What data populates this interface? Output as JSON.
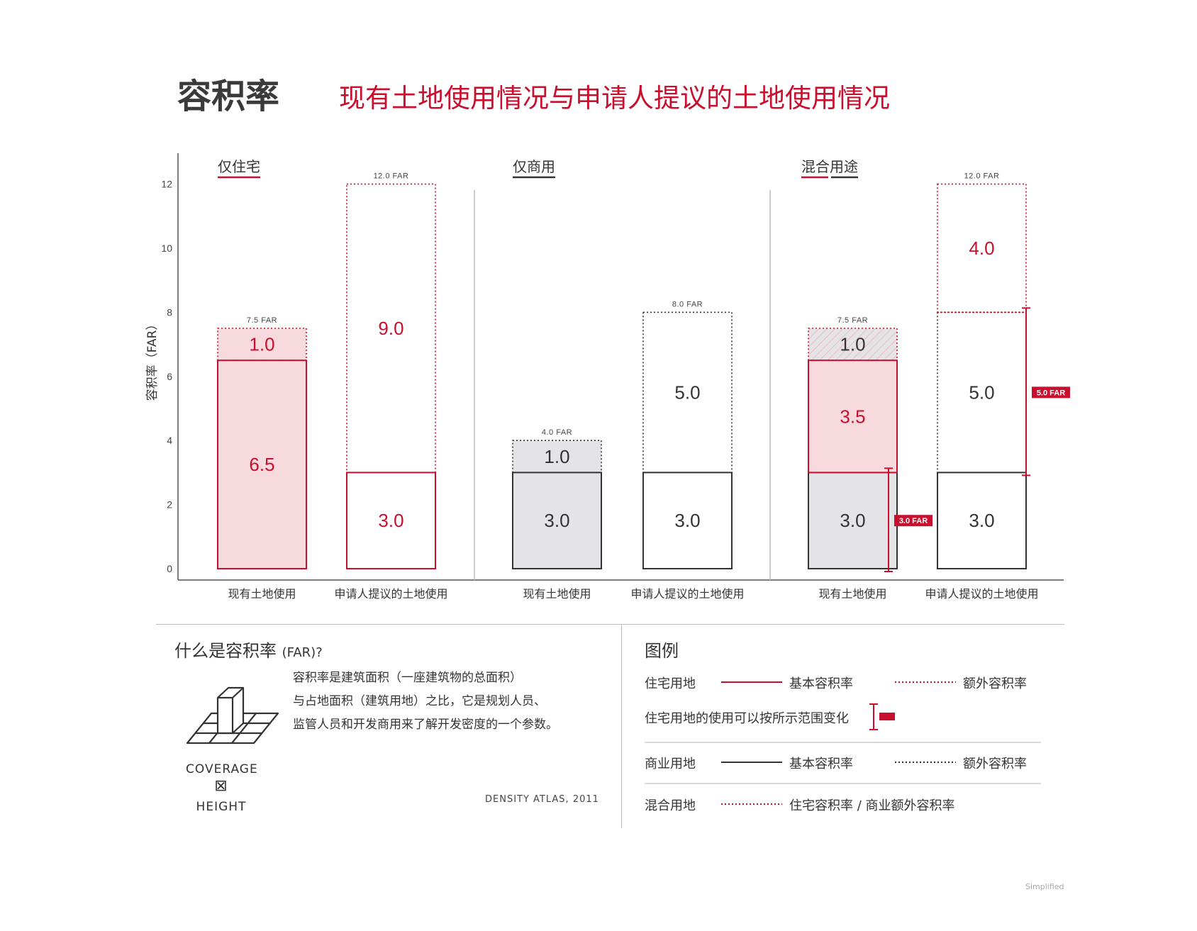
{
  "header": {
    "title": "容积率",
    "subtitle": "现有土地使用情况与申请人提议的土地使用情况"
  },
  "colors": {
    "red": "#c8102e",
    "red_fill": "#f6dadd",
    "gray_fill": "#e4e4e6",
    "dark": "#333333"
  },
  "chart_data": {
    "type": "bar",
    "ylabel": "容积率（FAR）",
    "ylim": [
      0,
      13
    ],
    "yticks": [
      "0",
      "2",
      "4",
      "6",
      "8",
      "10",
      "12"
    ],
    "groups": [
      {
        "name": "仅住宅",
        "bars": [
          {
            "label": "现有土地使用",
            "total_label": "7.5 FAR",
            "segments": [
              {
                "value": 6.5,
                "text": "6.5",
                "style": "residential-base"
              },
              {
                "value": 1.0,
                "text": "1.0",
                "style": "residential-bonus"
              }
            ]
          },
          {
            "label": "申请人提议的土地使用",
            "total_label": "12.0 FAR",
            "segments": [
              {
                "value": 3.0,
                "text": "3.0",
                "style": "residential-base-empty"
              },
              {
                "value": 9.0,
                "text": "9.0",
                "style": "residential-bonus-empty"
              }
            ]
          }
        ]
      },
      {
        "name": "仅商用",
        "bars": [
          {
            "label": "现有土地使用",
            "total_label": "4.0 FAR",
            "segments": [
              {
                "value": 3.0,
                "text": "3.0",
                "style": "commercial-base"
              },
              {
                "value": 1.0,
                "text": "1.0",
                "style": "commercial-bonus"
              }
            ]
          },
          {
            "label": "申请人提议的土地使用",
            "total_label": "8.0 FAR",
            "segments": [
              {
                "value": 3.0,
                "text": "3.0",
                "style": "commercial-base-empty"
              },
              {
                "value": 5.0,
                "text": "5.0",
                "style": "commercial-bonus-empty"
              }
            ]
          }
        ]
      },
      {
        "name": "混合用途",
        "bars": [
          {
            "label": "现有土地使用",
            "total_label": "7.5 FAR",
            "segments": [
              {
                "value": 3.0,
                "text": "3.0",
                "style": "commercial-base"
              },
              {
                "value": 3.5,
                "text": "3.5",
                "style": "residential-base"
              },
              {
                "value": 1.0,
                "text": "1.0",
                "style": "mixed-bonus-hatched"
              }
            ],
            "range": {
              "from": 0,
              "to": 3.0,
              "label": "3.0 FAR"
            }
          },
          {
            "label": "申请人提议的土地使用",
            "total_label": "12.0 FAR",
            "segments": [
              {
                "value": 3.0,
                "text": "3.0",
                "style": "commercial-base-empty"
              },
              {
                "value": 5.0,
                "text": "5.0",
                "style": "commercial-bonus-empty"
              },
              {
                "value": 4.0,
                "text": "4.0",
                "style": "residential-bonus-empty"
              }
            ],
            "range": {
              "from": 3.0,
              "to": 8.0,
              "label": "5.0 FAR"
            }
          }
        ]
      }
    ]
  },
  "explainer": {
    "title": "什么是容积率",
    "title_suffix": "(FAR)?",
    "lines": [
      "容积率是建筑面积（一座建筑物的总面积）",
      "与占地面积（建筑用地）之比，它是规划人员、",
      "监管人员和开发商用来了解开发密度的一个参数。"
    ],
    "coverage": "COVERAGE",
    "times": "⊠",
    "height": "HEIGHT",
    "credit": "DENSITY ATLAS, 2011"
  },
  "legend": {
    "title": "图例",
    "rows": [
      {
        "name": "住宅用地",
        "base": "基本容积率",
        "bonus": "额外容积率"
      },
      {
        "name": "住宅用地的使用可以按所示范围变化"
      },
      {
        "name": "商业用地",
        "base": "基本容积率",
        "bonus": "额外容积率"
      },
      {
        "name": "混合用地",
        "mixed": "住宅容积率 / 商业额外容积率"
      }
    ]
  },
  "footnote": "Simplified"
}
